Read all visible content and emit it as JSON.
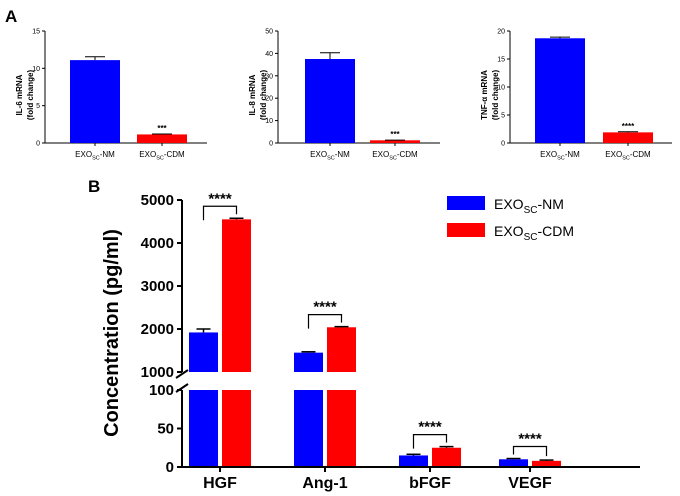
{
  "colors": {
    "blue": "#0000ff",
    "red": "#ff0000",
    "axis": "#000000"
  },
  "chart_data": [
    {
      "panel": "A",
      "type": "bar",
      "categories": [
        {
          "main": "EXO",
          "sub": "SC",
          "tail": "-NM"
        },
        {
          "main": "EXO",
          "sub": "SC",
          "tail": "-CDM"
        }
      ],
      "ylabel": "IL-6 mRNA",
      "ylabel2": "(fold change)",
      "ylim": [
        0,
        15
      ],
      "yticks": [
        0,
        5,
        10,
        15
      ],
      "values": [
        11.1,
        1.15
      ],
      "errors": [
        0.45,
        0.05
      ],
      "significance": [
        "",
        "***"
      ]
    },
    {
      "panel": "",
      "type": "bar",
      "categories": [
        {
          "main": "EXO",
          "sub": "SC",
          "tail": "-NM"
        },
        {
          "main": "EXO",
          "sub": "SC",
          "tail": "-CDM"
        }
      ],
      "ylabel": "IL-8 mRNA",
      "ylabel2": "(fold change)",
      "ylim": [
        0,
        50
      ],
      "yticks": [
        0,
        10,
        20,
        30,
        40,
        50
      ],
      "values": [
        37.5,
        1.2
      ],
      "errors": [
        2.8,
        0.1
      ],
      "significance": [
        "",
        "***"
      ]
    },
    {
      "panel": "",
      "type": "bar",
      "categories": [
        {
          "main": "EXO",
          "sub": "SC",
          "tail": "-NM"
        },
        {
          "main": "EXO",
          "sub": "SC",
          "tail": "-CDM"
        }
      ],
      "ylabel": "TNF-α mRNA",
      "ylabel2": "(fold change)",
      "ylim": [
        0,
        20
      ],
      "yticks": [
        0,
        5,
        10,
        15,
        20
      ],
      "values": [
        18.7,
        1.9
      ],
      "errors": [
        0.2,
        0.1
      ],
      "significance": [
        "",
        "****"
      ]
    },
    {
      "panel": "B",
      "type": "bar",
      "categories": [
        "HGF",
        "Ang-1",
        "bFGF",
        "VEGF"
      ],
      "ylabel": "Concentration (pg/ml)",
      "ylim": [
        0,
        5000
      ],
      "axis_break": [
        100,
        1000
      ],
      "yticks_upper": [
        1000,
        2000,
        3000,
        4000,
        5000
      ],
      "yticks_lower": [
        0,
        50,
        100
      ],
      "series": [
        {
          "name": "EXO_SC-NM",
          "legend_main": "EXO",
          "legend_sub": "SC",
          "legend_tail": "-NM",
          "values": [
            1920,
            1450,
            15,
            10
          ],
          "errors": [
            80,
            20,
            1.5,
            1
          ]
        },
        {
          "name": "EXO_SC-CDM",
          "legend_main": "EXO",
          "legend_sub": "SC",
          "legend_tail": "-CDM",
          "values": [
            4550,
            2040,
            25,
            8
          ],
          "errors": [
            25,
            15,
            1.5,
            1
          ]
        }
      ],
      "significance": [
        "****",
        "****",
        "****",
        "****"
      ]
    }
  ]
}
